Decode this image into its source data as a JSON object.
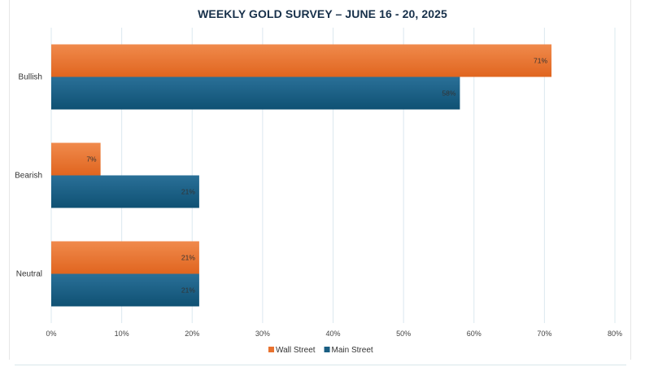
{
  "chart_data": {
    "type": "bar",
    "orientation": "horizontal",
    "title": "WEEKLY GOLD SURVEY – JUNE 16 - 20, 2025",
    "categories": [
      "Bullish",
      "Bearish",
      "Neutral"
    ],
    "series": [
      {
        "name": "Wall Street",
        "values": [
          71,
          7,
          21
        ],
        "labels": [
          "71%",
          "7%",
          "21%"
        ],
        "color": "#e8722f"
      },
      {
        "name": "Main Street",
        "values": [
          58,
          21,
          21
        ],
        "labels": [
          "58%",
          "21%",
          "21%"
        ],
        "color": "#1a5e82"
      }
    ],
    "xlim": [
      0,
      80
    ],
    "x_ticks": [
      0,
      10,
      20,
      30,
      40,
      50,
      60,
      70,
      80
    ],
    "x_tick_labels": [
      "0%",
      "10%",
      "20%",
      "30%",
      "40%",
      "50%",
      "60%",
      "70%",
      "80%"
    ],
    "grid": true,
    "legend_position": "bottom"
  }
}
